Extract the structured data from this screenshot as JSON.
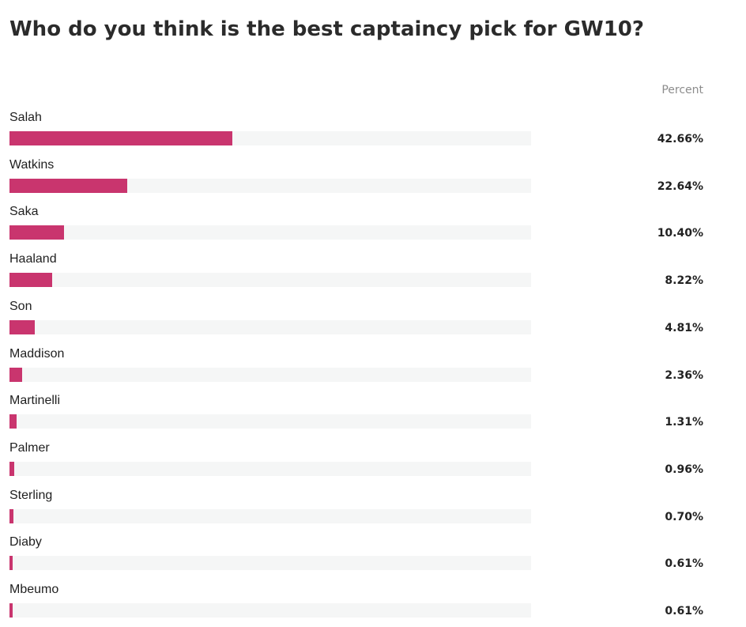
{
  "title": "Who do you think is the best captaincy pick for GW10?",
  "column_header": "Percent",
  "colors": {
    "bar": "#c9356e",
    "track": "#f5f6f6"
  },
  "chart_data": {
    "type": "bar",
    "orientation": "horizontal",
    "title": "Who do you think is the best captaincy pick for GW10?",
    "value_header": "Percent",
    "xlim": [
      0,
      100
    ],
    "categories": [
      "Salah",
      "Watkins",
      "Saka",
      "Haaland",
      "Son",
      "Maddison",
      "Martinelli",
      "Palmer",
      "Sterling",
      "Diaby",
      "Mbeumo"
    ],
    "values": [
      42.66,
      22.64,
      10.4,
      8.22,
      4.81,
      2.36,
      1.31,
      0.96,
      0.7,
      0.61,
      0.61
    ],
    "value_labels": [
      "42.66%",
      "22.64%",
      "10.40%",
      "8.22%",
      "4.81%",
      "2.36%",
      "1.31%",
      "0.96%",
      "0.70%",
      "0.61%",
      "0.61%"
    ]
  }
}
